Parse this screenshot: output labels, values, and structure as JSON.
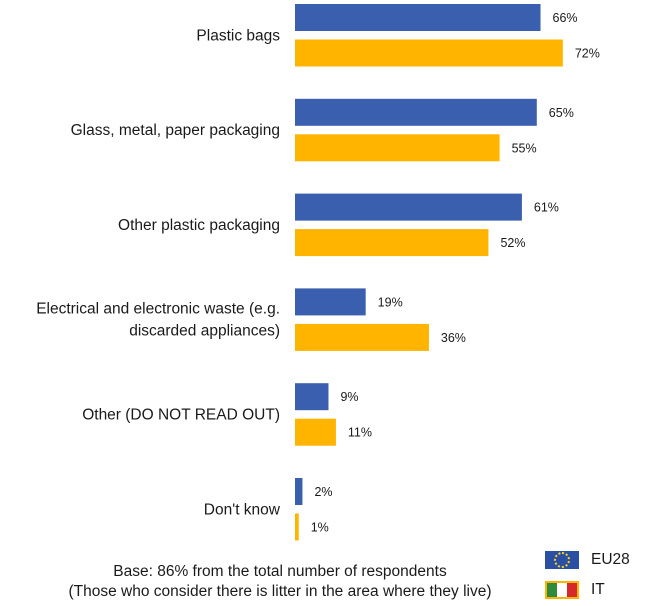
{
  "chart_data": {
    "type": "bar",
    "orientation": "horizontal",
    "categories": [
      [
        "Plastic bags"
      ],
      [
        "Glass, metal, paper packaging"
      ],
      [
        "Other plastic packaging"
      ],
      [
        "Electrical and electronic waste (e.g.",
        "discarded appliances)"
      ],
      [
        "Other (DO NOT READ OUT)"
      ],
      [
        "Don't know"
      ]
    ],
    "series": [
      {
        "name": "EU28",
        "color": "#3a5fae",
        "values": [
          66,
          65,
          61,
          19,
          9,
          2
        ]
      },
      {
        "name": "IT",
        "color": "#ffb400",
        "values": [
          72,
          55,
          52,
          36,
          11,
          1
        ]
      }
    ],
    "value_suffix": "%",
    "xlim": [
      0,
      72
    ],
    "grid": false,
    "legend_position": "bottom-right"
  },
  "footnote": {
    "line1": "Base: 86% from the total number of respondents",
    "line2": "(Those who consider there is litter in the area where they live)"
  },
  "legend": [
    {
      "label": "EU28",
      "icon": "eu-flag-icon"
    },
    {
      "label": "IT",
      "icon": "italy-flag-icon"
    }
  ]
}
